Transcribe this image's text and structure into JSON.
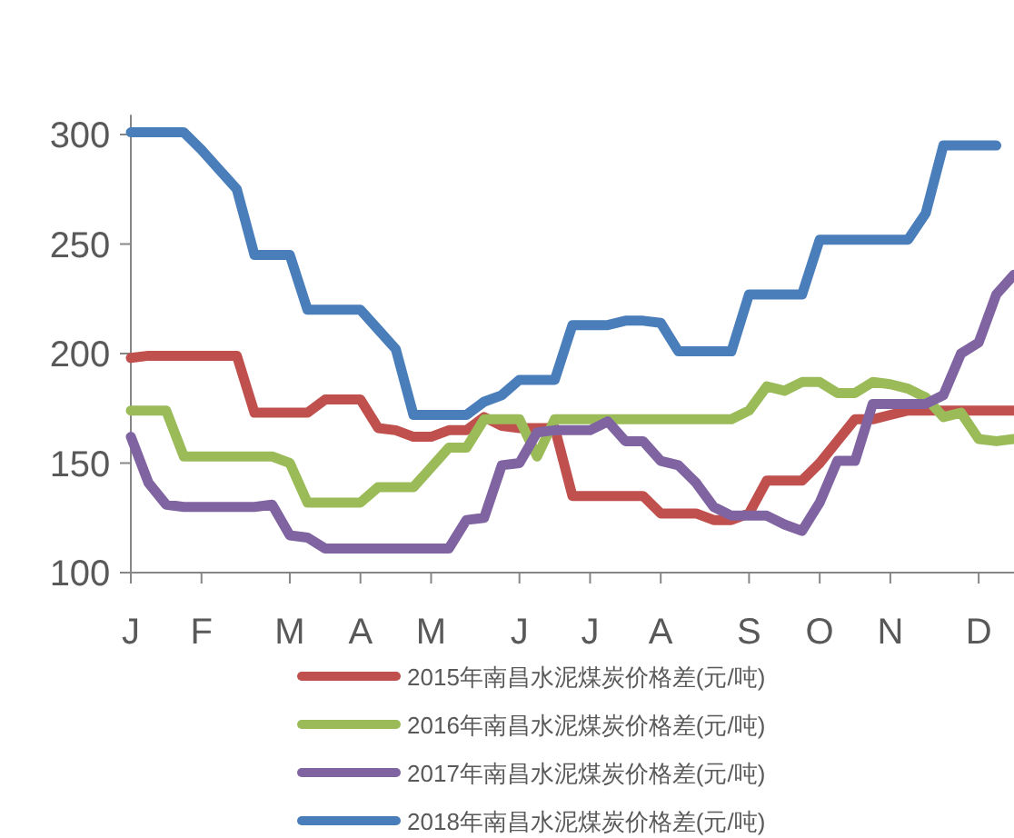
{
  "chart_data": {
    "type": "line",
    "ylim": [
      100,
      309
    ],
    "categories": [
      "J",
      null,
      null,
      null,
      "F",
      null,
      null,
      null,
      null,
      "M",
      null,
      null,
      null,
      "A",
      null,
      null,
      null,
      "M",
      null,
      null,
      null,
      null,
      "J",
      null,
      null,
      null,
      "J",
      null,
      null,
      null,
      "A",
      null,
      null,
      null,
      null,
      "S",
      null,
      null,
      null,
      "O",
      null,
      null,
      null,
      "N",
      null,
      null,
      null,
      null,
      "D",
      null,
      null
    ],
    "yticks": [
      100,
      150,
      200,
      250,
      300
    ],
    "grid": false,
    "legend": "bottom",
    "marker": "none",
    "line_style": "solid",
    "series": [
      {
        "name": "2015年南昌水泥煤炭价格差(元/吨)",
        "color": "#c0504d",
        "values": [
          198,
          199,
          199,
          199,
          199,
          199,
          199,
          173,
          173,
          173,
          173,
          179,
          179,
          179,
          166,
          165,
          162,
          162,
          165,
          165,
          171,
          167,
          166,
          166,
          166,
          135,
          135,
          135,
          135,
          135,
          127,
          127,
          127,
          124,
          124,
          127,
          142,
          142,
          142,
          150,
          160,
          170,
          170,
          172,
          174,
          174,
          174,
          174,
          174,
          174,
          174
        ]
      },
      {
        "name": "2016年南昌水泥煤炭价格差(元/吨)",
        "color": "#9bbb59",
        "values": [
          174,
          174,
          174,
          153,
          153,
          153,
          153,
          153,
          153,
          150,
          132,
          132,
          132,
          132,
          139,
          139,
          139,
          148,
          157,
          157,
          170,
          170,
          170,
          153,
          170,
          170,
          170,
          170,
          170,
          170,
          170,
          170,
          170,
          170,
          170,
          174,
          185,
          183,
          187,
          187,
          182,
          182,
          187,
          186,
          184,
          180,
          171,
          173,
          161,
          160,
          161
        ]
      },
      {
        "name": "2017年南昌水泥煤炭价格差(元/吨)",
        "color": "#8064a2",
        "values": [
          162,
          141,
          131,
          130,
          130,
          130,
          130,
          130,
          131,
          117,
          116,
          111,
          111,
          111,
          111,
          111,
          111,
          111,
          111,
          124,
          125,
          149,
          150,
          164,
          165,
          165,
          165,
          169,
          160,
          160,
          151,
          149,
          141,
          130,
          126,
          126,
          126,
          122,
          119,
          132,
          151,
          151,
          177,
          177,
          177,
          177,
          181,
          200,
          205,
          227,
          236
        ]
      },
      {
        "name": "2018年南昌水泥煤炭价格差(元/吨)",
        "color": "#4a7ebb",
        "values": [
          301,
          301,
          301,
          301,
          293,
          284,
          275,
          245,
          245,
          245,
          220,
          220,
          220,
          220,
          211,
          202,
          172,
          172,
          172,
          172,
          178,
          181,
          188,
          188,
          188,
          213,
          213,
          213,
          215,
          215,
          214,
          201,
          201,
          201,
          201,
          227,
          227,
          227,
          227,
          252,
          252,
          252,
          252,
          252,
          252,
          264,
          295,
          295,
          295,
          295,
          null
        ]
      }
    ]
  }
}
